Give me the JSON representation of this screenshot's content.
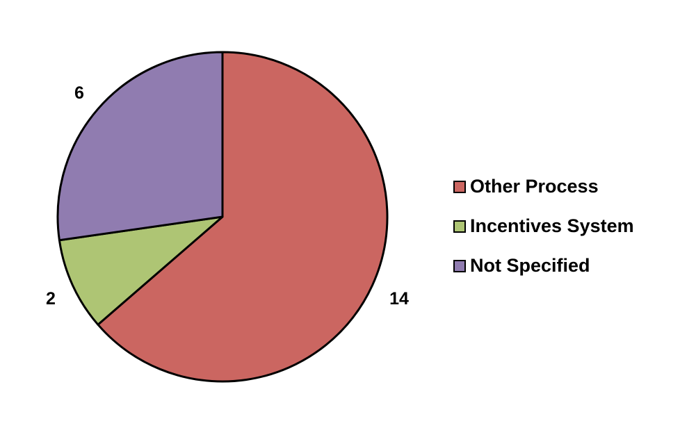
{
  "chart_data": {
    "type": "pie",
    "categories": [
      "Other Process",
      "Incentives System",
      "Not Specified"
    ],
    "values": [
      14,
      2,
      6
    ],
    "colors": [
      "#cb6661",
      "#aec574",
      "#907cb0"
    ],
    "data_labels": [
      "14",
      "2",
      "6"
    ],
    "title": "",
    "start_angle": "12 o'clock",
    "direction": "clockwise",
    "legend_position": "right"
  }
}
